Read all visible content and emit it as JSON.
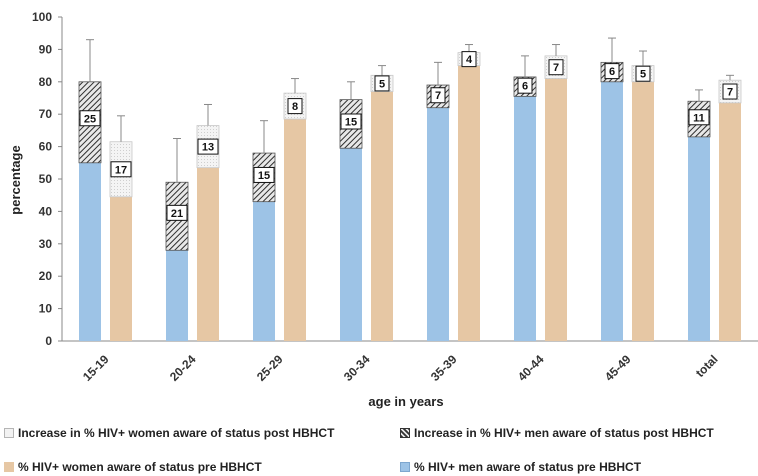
{
  "chart_data": {
    "type": "bar",
    "xlabel": "age in years",
    "ylabel": "percentage",
    "ylim": [
      0,
      100
    ],
    "yticks": [
      0,
      10,
      20,
      30,
      40,
      50,
      60,
      70,
      80,
      90,
      100
    ],
    "categories": [
      "15-19",
      "20-24",
      "25-29",
      "30-34",
      "35-39",
      "40-44",
      "45-49",
      "total"
    ],
    "series": [
      {
        "name": "% HIV+ men aware of status pre HBHCT",
        "values": [
          55,
          28,
          43,
          59.5,
          72,
          75.5,
          80,
          63
        ]
      },
      {
        "name": "Increase in % HIV+ men aware of status post HBHCT",
        "values": [
          25,
          21,
          15,
          15,
          7,
          6,
          6,
          11
        ]
      },
      {
        "name": "% HIV+ women aware of status pre HBHCT",
        "values": [
          44.5,
          53.5,
          68.5,
          77,
          85,
          81,
          80,
          73.5
        ]
      },
      {
        "name": "Increase in % HIV+ women aware of status post HBHCT",
        "values": [
          17,
          13,
          8,
          5,
          4,
          7,
          5,
          7
        ]
      }
    ],
    "error_bar_top": {
      "men": [
        93,
        62.5,
        68,
        80,
        86,
        88,
        93.5,
        77.5
      ],
      "women": [
        69.5,
        73,
        81,
        85,
        91.5,
        91.5,
        89.5,
        82
      ]
    },
    "increase_labels": {
      "men": [
        "25",
        "21",
        "15",
        "15",
        "7",
        "6",
        "6",
        "11"
      ],
      "women": [
        "17",
        "13",
        "8",
        "5",
        "4",
        "7",
        "5",
        "7"
      ]
    },
    "colors": {
      "men_pre": "#9dc3e6",
      "women_pre": "#e6c7a4",
      "men_increase_pattern": "#333333",
      "women_increase": "#f2f2f2"
    },
    "grid": false,
    "legend_position": "bottom"
  },
  "legend": {
    "inc_women": "Increase in % HIV+ women aware of status post HBHCT",
    "inc_men": "Increase in % HIV+ men aware of status post HBHCT",
    "women_pre": "% HIV+ women aware of status pre HBHCT",
    "men_pre": "% HIV+ men aware of status pre HBHCT"
  }
}
